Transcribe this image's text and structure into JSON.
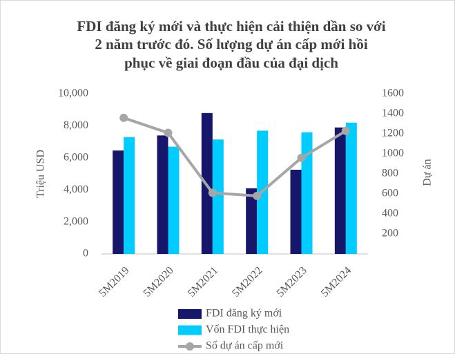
{
  "chart_data": {
    "type": "bar_line",
    "title": [
      "FDI đăng ký mới và thực hiện cải thiện dần so với",
      "2 năm trước đó. Số lượng dự án cấp mới hồi",
      "phục về giai đoạn đầu của đại dịch"
    ],
    "y_label": "Triệu USD",
    "y2_label": "Dự án",
    "categories": [
      "5M2019",
      "5M2020",
      "5M2021",
      "5M2022",
      "5M2023",
      "5M2024"
    ],
    "series": [
      {
        "name": "FDI đăng ký mới",
        "type": "bar",
        "color": "#16166b",
        "values": [
          6460,
          7400,
          8800,
          4100,
          5260,
          7900
        ]
      },
      {
        "name": "Vốn FDI thực hiện",
        "type": "bar",
        "color": "#00ccff",
        "values": [
          7300,
          6700,
          7150,
          7700,
          7600,
          8200
        ]
      },
      {
        "name": "Số dự án cấp mới",
        "type": "line",
        "axis": "y2",
        "color": "#a6a6a6",
        "values": [
          1360,
          1210,
          610,
          580,
          960,
          1230
        ]
      }
    ],
    "ylim": [
      0,
      10000
    ],
    "yticks": [
      0,
      {
        "value": 2000,
        "label": "2,000"
      },
      {
        "value": 4000,
        "label": "4,000"
      },
      {
        "value": 6000,
        "label": "6,000"
      },
      {
        "value": 8000,
        "label": "8,000"
      },
      {
        "value": 10000,
        "label": "10,000"
      }
    ],
    "y2lim": [
      0,
      1600
    ],
    "y2ticks": [
      200,
      400,
      600,
      800,
      1000,
      1200,
      1400,
      1600
    ],
    "grid": false,
    "legend": "bottom"
  }
}
